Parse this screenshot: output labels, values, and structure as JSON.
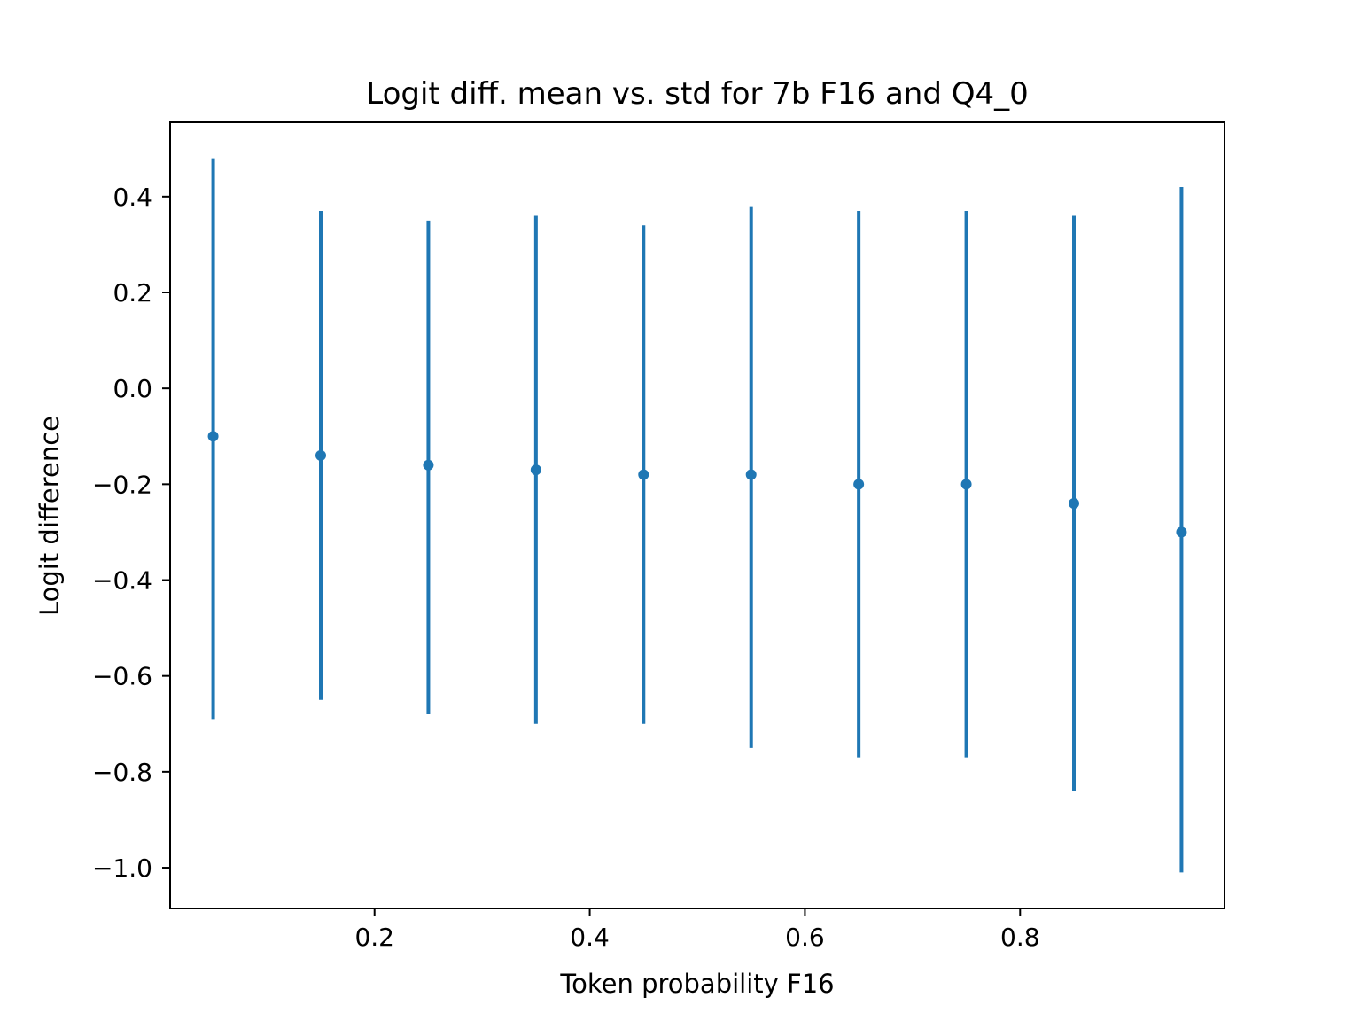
{
  "chart_data": {
    "type": "scatter",
    "title": "Logit diff. mean vs. std for 7b F16 and Q4_0",
    "xlabel": "Token probability F16",
    "ylabel": "Logit difference",
    "xlim": [
      0.01,
      0.99
    ],
    "ylim": [
      -1.085,
      0.555
    ],
    "xticks": [
      0.2,
      0.4,
      0.6,
      0.8
    ],
    "xtick_labels": [
      "0.2",
      "0.4",
      "0.6",
      "0.8"
    ],
    "yticks": [
      0.4,
      0.2,
      0.0,
      -0.2,
      -0.4,
      -0.6,
      -0.8,
      -1.0
    ],
    "ytick_labels": [
      "0.4",
      "0.2",
      "0.0",
      "−0.2",
      "−0.4",
      "−0.6",
      "−0.8",
      "−1.0"
    ],
    "grid": false,
    "legend": "none",
    "series": [
      {
        "color": "#1f77b4",
        "marker": "circle",
        "error_bars": "vertical",
        "x": [
          0.05,
          0.15,
          0.25,
          0.35,
          0.45,
          0.55,
          0.65,
          0.75,
          0.85,
          0.95
        ],
        "y": [
          -0.1,
          -0.14,
          -0.16,
          -0.17,
          -0.18,
          -0.18,
          -0.2,
          -0.2,
          -0.24,
          -0.3
        ],
        "y_upper": [
          0.48,
          0.37,
          0.35,
          0.36,
          0.34,
          0.38,
          0.37,
          0.37,
          0.36,
          0.42
        ],
        "y_lower": [
          -0.69,
          -0.65,
          -0.68,
          -0.7,
          -0.7,
          -0.75,
          -0.77,
          -0.77,
          -0.84,
          -1.01
        ]
      }
    ]
  }
}
